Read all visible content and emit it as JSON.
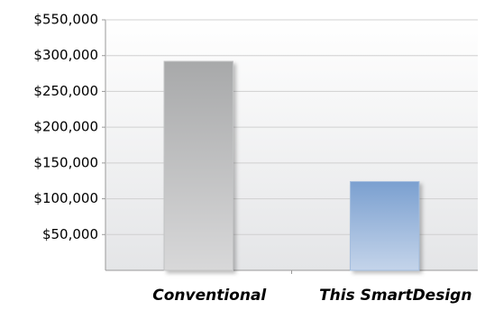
{
  "chart_data": {
    "type": "bar",
    "categories": [
      "Conventional",
      "This SmartDesign"
    ],
    "values": [
      292000,
      124000
    ],
    "colors": [
      "#a8a9aa",
      "#7ba0d0"
    ],
    "ylim": [
      0,
      550000
    ],
    "ybreak": [
      300000,
      500000
    ],
    "yticks": [
      {
        "value": 50000,
        "label": "$50,000"
      },
      {
        "value": 100000,
        "label": "$100,000"
      },
      {
        "value": 150000,
        "label": "$150,000"
      },
      {
        "value": 200000,
        "label": "$200,000"
      },
      {
        "value": 250000,
        "label": "$250,000"
      },
      {
        "value": 300000,
        "label": "$300,000"
      },
      {
        "value": 550000,
        "label": "$550,000"
      }
    ],
    "grid": true
  }
}
